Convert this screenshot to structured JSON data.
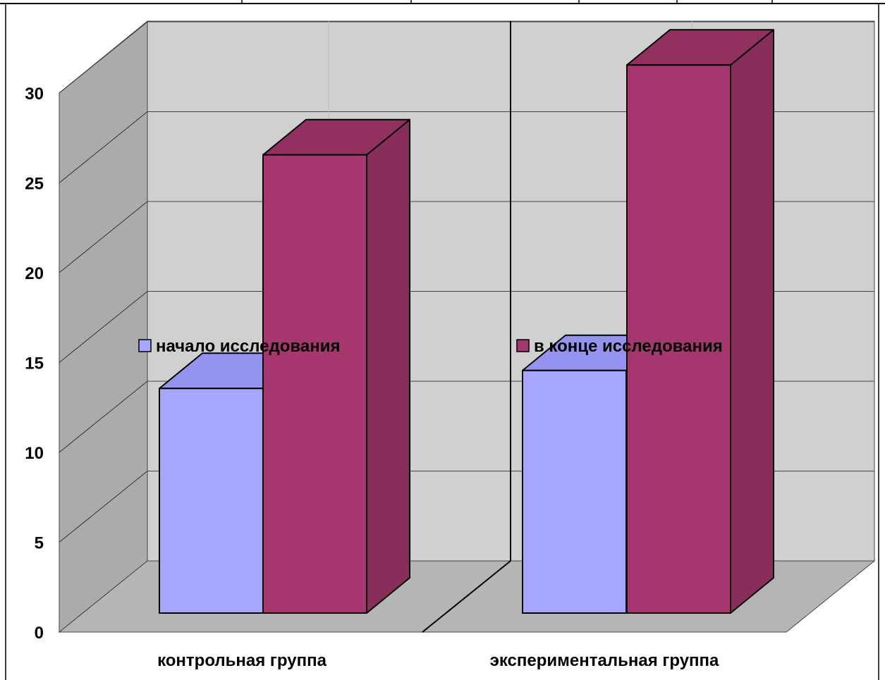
{
  "chart_data": {
    "type": "bar",
    "three_d": true,
    "categories": [
      "контрольная группа",
      "экспериментальная группа"
    ],
    "series": [
      {
        "name": "начало исследования",
        "values": [
          12.5,
          13.5
        ]
      },
      {
        "name": "в конце исследования",
        "values": [
          25.5,
          30.5
        ]
      }
    ],
    "y_ticks": [
      "0",
      "5",
      "10",
      "15",
      "20",
      "25",
      "30"
    ],
    "ylim": [
      0,
      30
    ],
    "grid": true,
    "legend_position": "inside-middle",
    "colors": {
      "series_1_front": "#A6A6FF",
      "series_1_top": "#9494F0",
      "series_2_front": "#A6376E",
      "series_2_top": "#92305F",
      "series_2_side": "#892E5B",
      "back_wall": "#D0D0D0",
      "side_wall": "#ABABAB",
      "floor": "#B5B5B5"
    }
  }
}
